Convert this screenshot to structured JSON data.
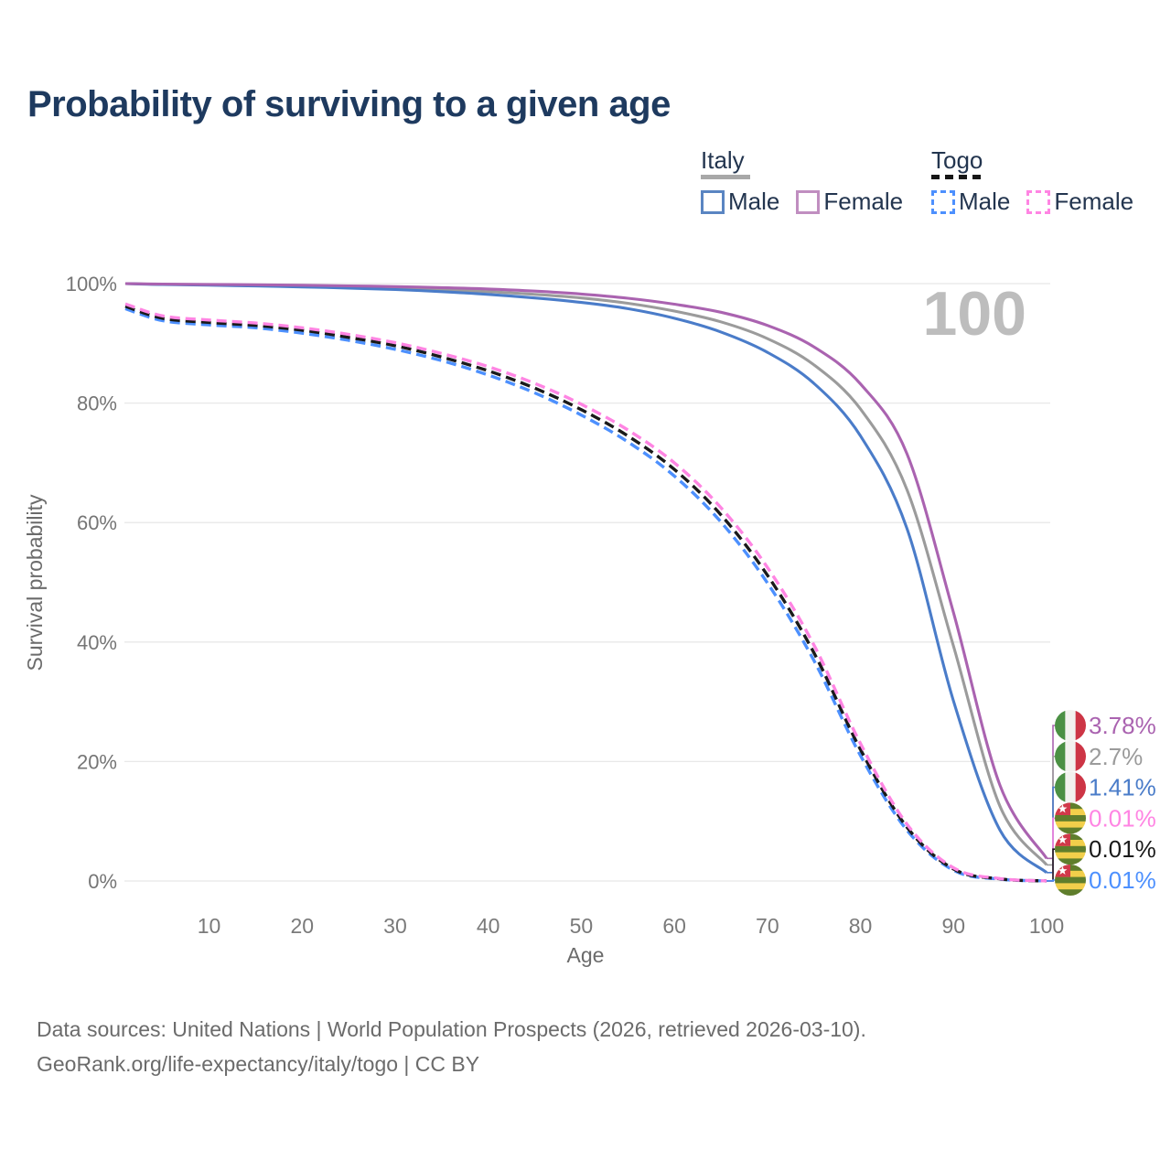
{
  "title": "Probability of surviving to a given age",
  "watermark": "100",
  "legend": {
    "groups": [
      {
        "label": "Italy",
        "line_style": "solid",
        "underline_color": "#a8a8a8",
        "items": [
          {
            "label": "Male",
            "color": "#5a85c2"
          },
          {
            "label": "Female",
            "color": "#c08ec0"
          }
        ]
      },
      {
        "label": "Togo",
        "line_style": "dashed",
        "underline_color": "#161616",
        "items": [
          {
            "label": "Male",
            "color": "#4d90fe"
          },
          {
            "label": "Female",
            "color": "#ff85e3"
          }
        ]
      }
    ]
  },
  "chart_data": {
    "type": "line",
    "title": "Probability of surviving to a given age",
    "xlabel": "Age",
    "ylabel": "Survival probability",
    "x_range": [
      1,
      100
    ],
    "y_range": [
      0,
      100
    ],
    "grid": "horizontal",
    "legend_position": "top-right",
    "x_ticks": [
      "10",
      "20",
      "30",
      "40",
      "50",
      "60",
      "70",
      "80",
      "90",
      "100"
    ],
    "x_tick_values": [
      10,
      20,
      30,
      40,
      50,
      60,
      70,
      80,
      90,
      100
    ],
    "y_ticks": [
      {
        "value": 100,
        "label": "100%"
      },
      {
        "value": 80,
        "label": "80%"
      },
      {
        "value": 60,
        "label": "60%"
      },
      {
        "value": 40,
        "label": "40%"
      },
      {
        "value": 20,
        "label": "20%"
      },
      {
        "value": 0,
        "label": "0%"
      }
    ],
    "ages": [
      1,
      5,
      10,
      15,
      20,
      25,
      30,
      35,
      40,
      45,
      50,
      55,
      60,
      65,
      70,
      75,
      80,
      85,
      90,
      95,
      100
    ],
    "series": [
      {
        "name": "Italy Female",
        "country": "Italy",
        "sex": "Female",
        "flag": "italy",
        "color": "#aa63b0",
        "dash": false,
        "draw_order": 3,
        "end_label": "3.78%",
        "values": [
          100,
          99.92,
          99.86,
          99.8,
          99.72,
          99.62,
          99.5,
          99.33,
          99.1,
          98.75,
          98.25,
          97.55,
          96.55,
          95.2,
          93.0,
          89.4,
          83.2,
          71.5,
          44.9,
          16.0,
          3.78
        ]
      },
      {
        "name": "Italy Total",
        "country": "Italy",
        "sex": "Total",
        "flag": "italy",
        "color": "#9b9b9b",
        "dash": false,
        "draw_order": 1,
        "end_label": "2.7%",
        "values": [
          100,
          99.88,
          99.8,
          99.7,
          99.58,
          99.44,
          99.26,
          99.0,
          98.65,
          98.2,
          97.6,
          96.7,
          95.4,
          93.6,
          90.8,
          86.4,
          79.0,
          65.5,
          39.3,
          12.5,
          2.7
        ]
      },
      {
        "name": "Italy Male",
        "country": "Italy",
        "sex": "Male",
        "flag": "italy",
        "color": "#4a7cc9",
        "dash": false,
        "draw_order": 2,
        "end_label": "1.41%",
        "values": [
          100,
          99.84,
          99.74,
          99.6,
          99.44,
          99.25,
          99.0,
          98.65,
          98.2,
          97.6,
          96.85,
          95.8,
          94.2,
          91.9,
          88.5,
          83.3,
          74.5,
          59.0,
          30.1,
          8.5,
          1.41
        ]
      },
      {
        "name": "Togo Female",
        "country": "Togo",
        "sex": "Female",
        "flag": "togo",
        "color": "#ff85e3",
        "dash": true,
        "draw_order": 6,
        "end_label": "0.01%",
        "values": [
          96.6,
          94.6,
          93.9,
          93.4,
          92.6,
          91.5,
          90.1,
          88.3,
          86.1,
          83.3,
          79.8,
          75.5,
          70.0,
          62.5,
          52.5,
          39.5,
          23.0,
          9.5,
          2.2,
          0.4,
          0.01
        ]
      },
      {
        "name": "Togo Total",
        "country": "Togo",
        "sex": "Total",
        "flag": "togo",
        "color": "#1a1a1a",
        "dash": true,
        "draw_order": 5,
        "end_label": "0.01%",
        "values": [
          96.2,
          94.2,
          93.5,
          93.0,
          92.2,
          91.0,
          89.6,
          87.7,
          85.4,
          82.5,
          78.9,
          74.5,
          68.9,
          61.3,
          51.2,
          38.2,
          22.0,
          9.0,
          2.0,
          0.35,
          0.01
        ]
      },
      {
        "name": "Togo Male",
        "country": "Togo",
        "sex": "Male",
        "flag": "togo",
        "color": "#4d90fe",
        "dash": true,
        "draw_order": 4,
        "end_label": "0.01%",
        "values": [
          95.8,
          93.8,
          93.1,
          92.6,
          91.7,
          90.5,
          89.0,
          87.1,
          84.7,
          81.7,
          78.0,
          73.5,
          67.8,
          60.1,
          49.9,
          36.9,
          21.0,
          8.5,
          1.8,
          0.3,
          0.01
        ]
      }
    ]
  },
  "footer": {
    "line1": "Data sources: United Nations | World Population Prospects (2026, retrieved 2026-03-10).",
    "line2": "GeoRank.org/life-expectancy/italy/togo | CC BY"
  }
}
